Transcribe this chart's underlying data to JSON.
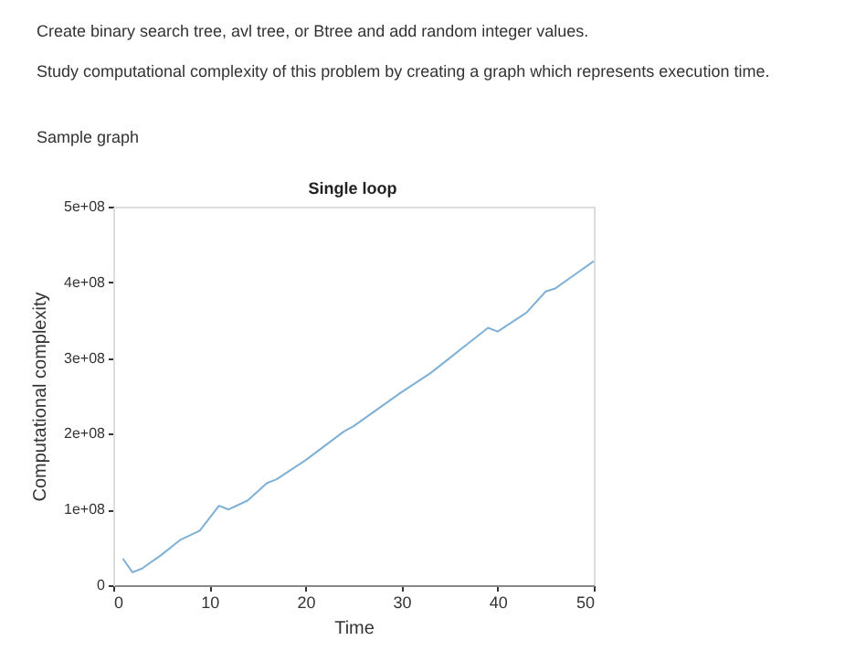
{
  "chart_data": {
    "type": "line",
    "title": "Single loop",
    "xlabel": "Time",
    "ylabel": "Computational complexity",
    "annotations": [
      "Create binary search tree, avl tree, or Btree and add random integer values.",
      "Study computational complexity of this problem by creating a graph which represents execution time.",
      "Sample graph"
    ],
    "x": [
      1,
      2,
      3,
      5,
      7,
      9,
      11,
      12,
      14,
      16,
      17,
      20,
      24,
      25,
      30,
      33,
      35,
      37,
      39,
      40,
      43,
      45,
      46,
      48,
      50
    ],
    "series": [
      {
        "color": "#7fb0d6",
        "values": [
          35000000,
          17000000,
          22000000,
          40000000,
          60000000,
          72000000,
          105000000,
          100000000,
          112000000,
          135000000,
          140000000,
          165000000,
          203000000,
          210000000,
          255000000,
          280000000,
          300000000,
          320000000,
          340000000,
          335000000,
          360000000,
          388000000,
          392000000,
          410000000,
          428000000
        ]
      }
    ],
    "xlim": [
      0,
      50
    ],
    "xticks": [
      0,
      10,
      20,
      30,
      40,
      50
    ],
    "ylim": [
      0,
      500000000
    ],
    "yticks": [
      {
        "value": 0,
        "label": "0"
      },
      {
        "value": 100000000,
        "label": "1e+08"
      },
      {
        "value": 200000000,
        "label": "2e+08"
      },
      {
        "value": 300000000,
        "label": "3e+08"
      },
      {
        "value": 400000000,
        "label": "4e+08"
      },
      {
        "value": 500000000,
        "label": "5e+08"
      }
    ],
    "grid": false,
    "legend": false,
    "line_style": "solid",
    "marker": "none"
  }
}
